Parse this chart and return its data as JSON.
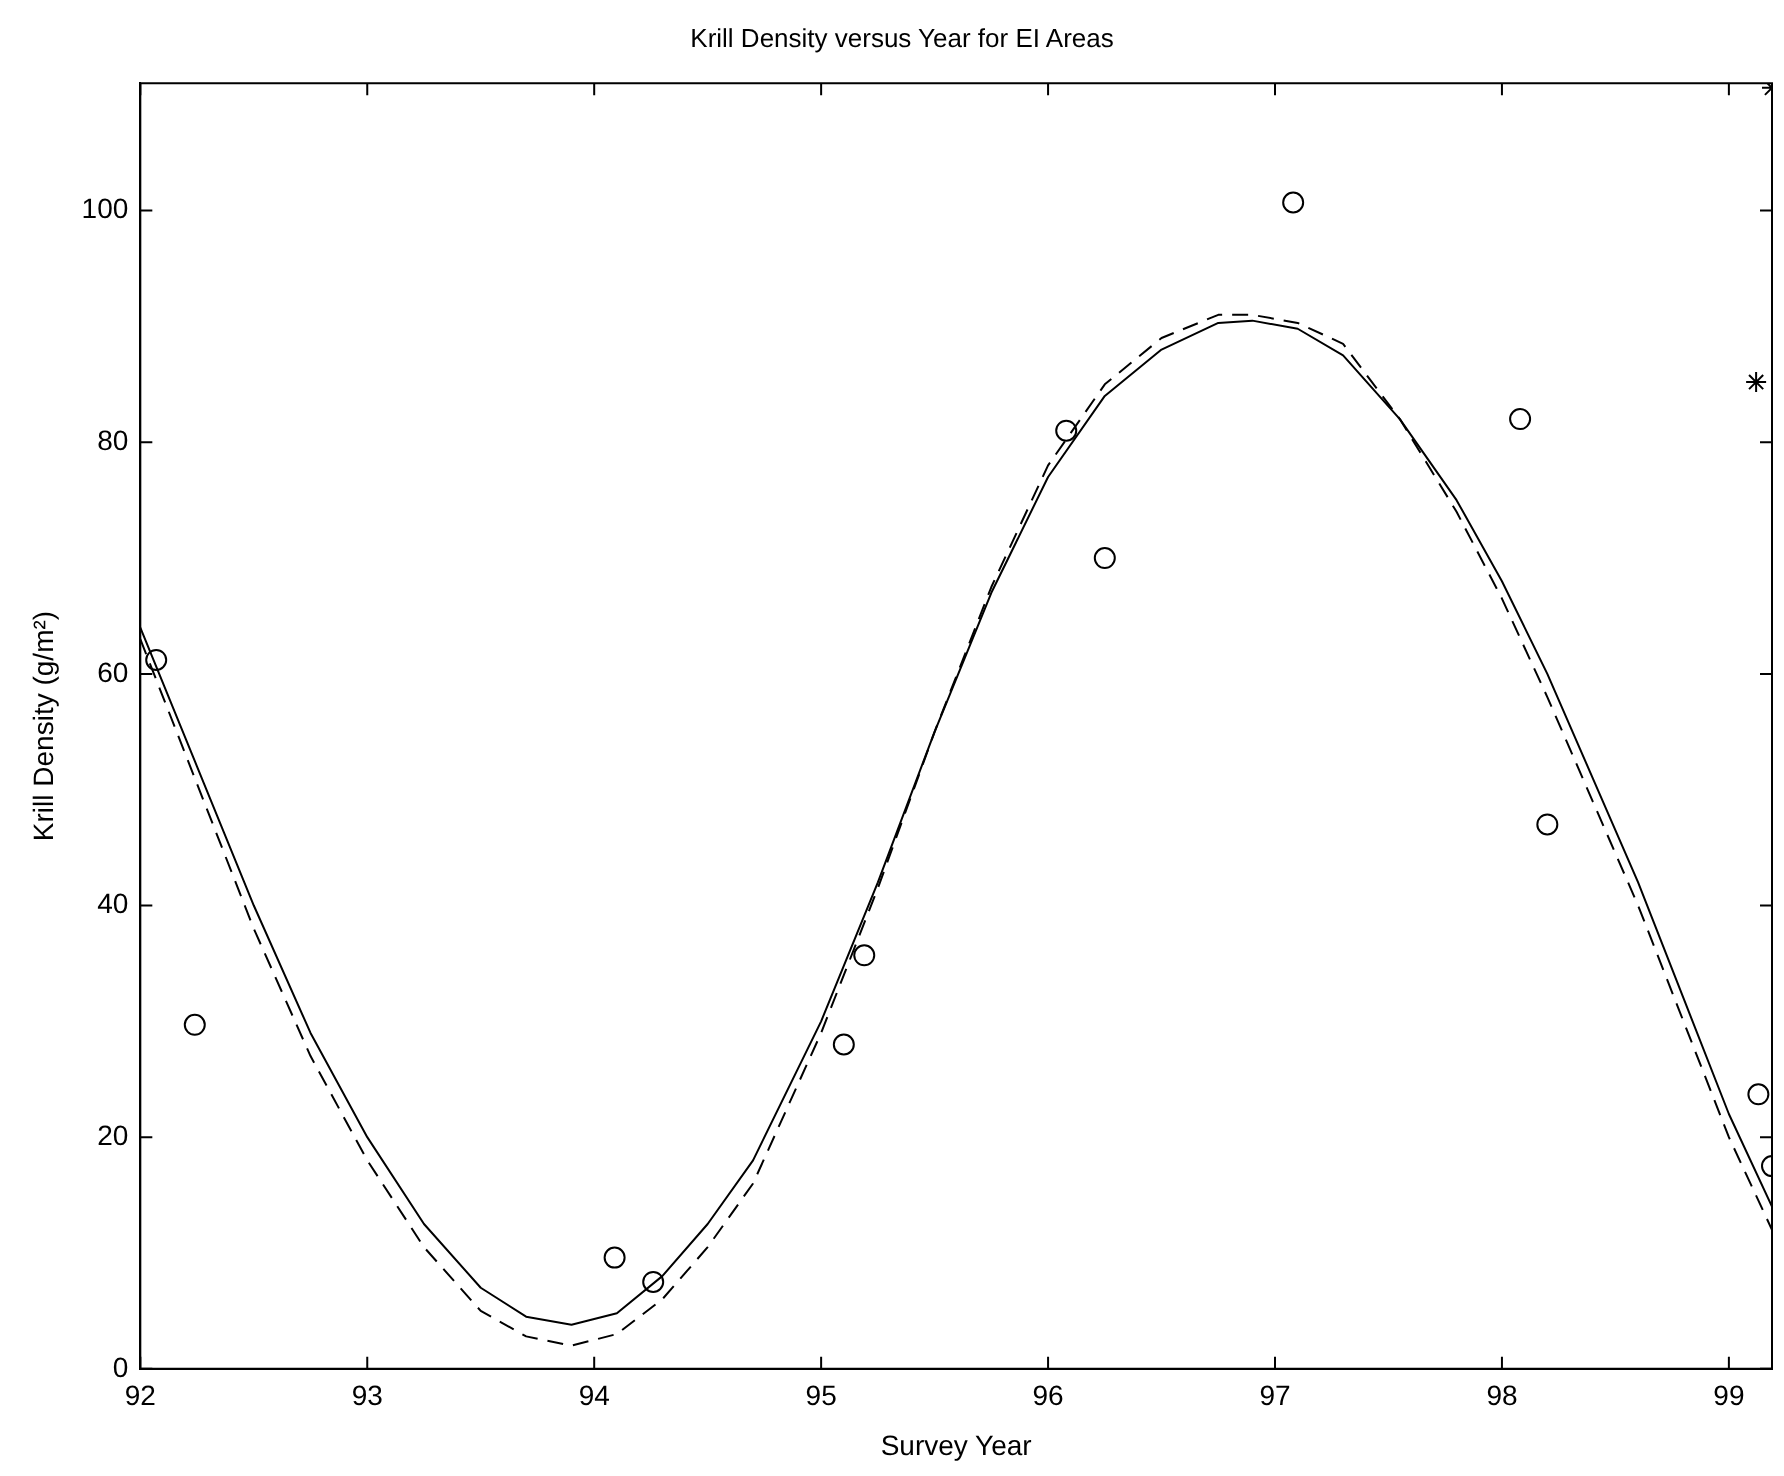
{
  "chart_data": {
    "type": "scatter",
    "title": "Krill Density versus Year for EI Areas",
    "xlabel": "Survey Year",
    "ylabel": "Krill Density (g/m²)",
    "xlim": [
      92,
      99.19
    ],
    "xticks": [
      92,
      93,
      94,
      95,
      96,
      97,
      98,
      99
    ],
    "ylim": [
      0,
      111
    ],
    "yticks": [
      0,
      20,
      40,
      60,
      80,
      100
    ],
    "grid": false,
    "legend": false,
    "series": [
      {
        "marker": "circle",
        "color": "#000000",
        "x": [
          92.07,
          92.24,
          94.09,
          94.26,
          95.1,
          95.19,
          96.08,
          96.25,
          97.08,
          98.08,
          98.2,
          99.13,
          99.19
        ],
        "values": [
          61.2,
          29.7,
          9.6,
          7.5,
          28,
          35.7,
          81,
          70,
          100.7,
          82,
          47,
          23.7,
          17.5
        ]
      },
      {
        "marker": "cross",
        "color": "#000000",
        "x": [
          99.12,
          99.19
        ],
        "values": [
          85.2,
          110.6
        ]
      },
      {
        "type": "line",
        "marker": "none",
        "line_style": "solid",
        "color": "#000000",
        "x": [
          92,
          92.25,
          92.5,
          92.75,
          93,
          93.25,
          93.5,
          93.7,
          93.9,
          94.1,
          94.3,
          94.5,
          94.7,
          95,
          95.25,
          95.5,
          95.75,
          96,
          96.25,
          96.5,
          96.75,
          96.9,
          97.1,
          97.3,
          97.55,
          97.8,
          98,
          98.2,
          98.4,
          98.6,
          98.8,
          99,
          99.19
        ],
        "values": [
          64,
          52,
          40,
          29,
          20,
          12.5,
          7,
          4.5,
          3.8,
          4.8,
          8,
          12.5,
          18,
          30,
          42,
          55,
          67,
          77,
          84,
          88,
          90.3,
          90.5,
          89.8,
          87.5,
          82,
          75,
          68,
          60,
          51,
          42,
          32,
          22,
          14
        ]
      },
      {
        "type": "line",
        "marker": "none",
        "line_style": "dashed",
        "color": "#000000",
        "x": [
          92,
          92.25,
          92.5,
          92.75,
          93,
          93.25,
          93.5,
          93.7,
          93.9,
          94.1,
          94.3,
          94.5,
          94.7,
          95,
          95.25,
          95.5,
          95.75,
          96,
          96.25,
          96.5,
          96.75,
          96.9,
          97.1,
          97.3,
          97.55,
          97.8,
          98,
          98.2,
          98.4,
          98.6,
          98.8,
          99,
          99.19
        ],
        "values": [
          63,
          50.5,
          38,
          27,
          18,
          10.5,
          5,
          2.8,
          2,
          3,
          6,
          10.5,
          16,
          29,
          41.5,
          55,
          67.5,
          78,
          85,
          89,
          91,
          91,
          90.3,
          88.5,
          82,
          74,
          66.5,
          58,
          49,
          40,
          30,
          20,
          12
        ]
      }
    ]
  }
}
